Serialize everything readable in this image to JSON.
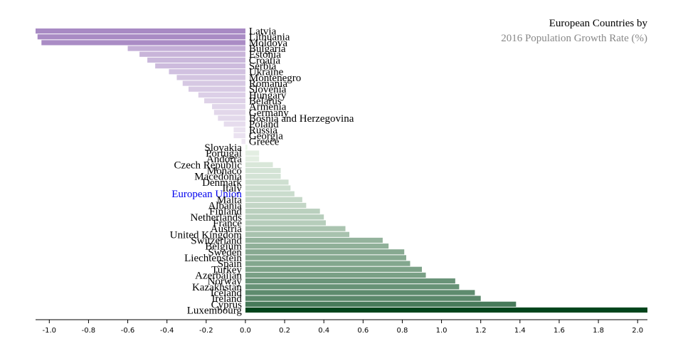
{
  "title_line1": "European Countries by",
  "title_line2": "2016 Population Growth Rate (%)",
  "colors": {
    "negative_light": "#f0eaf4",
    "negative_dark": "#a88ac4",
    "positive_light": "#eef7ec",
    "positive_dark": "#00441b",
    "highlight_label": "#0000ee"
  },
  "chart_data": {
    "type": "bar",
    "orientation": "horizontal",
    "xlim": [
      -1.07,
      2.05
    ],
    "xticks": [
      -1.0,
      -0.8,
      -0.6,
      -0.4,
      -0.2,
      0.0,
      0.2,
      0.4,
      0.6,
      0.8,
      1.0,
      1.2,
      1.4,
      1.6,
      1.8,
      2.0
    ],
    "xtick_labels": [
      "-1.0",
      "-0.8",
      "-0.6",
      "-0.4",
      "-0.2",
      "0.0",
      "0.2",
      "0.4",
      "0.6",
      "0.8",
      "1.0",
      "1.2",
      "1.4",
      "1.6",
      "1.8",
      "2.0"
    ],
    "highlight": "European Union",
    "categories": [
      "Latvia",
      "Lithuania",
      "Moldova",
      "Bulgaria",
      "Estonia",
      "Croatia",
      "Serbia",
      "Ukraine",
      "Montenegro",
      "Romania",
      "Slovenia",
      "Hungary",
      "Belarus",
      "Armenia",
      "Germany",
      "Bosnia and Herzegovina",
      "Poland",
      "Russia",
      "Georgia",
      "Greece",
      "Slovakia",
      "Portugal",
      "Andorra",
      "Czech Republic",
      "Monaco",
      "Macedonia",
      "Denmark",
      "Italy",
      "European Union",
      "Malta",
      "Albania",
      "Finland",
      "Netherlands",
      "France",
      "Austria",
      "United Kingdom",
      "Switzerland",
      "Belgium",
      "Sweden",
      "Liechtenstein",
      "Spain",
      "Turkey",
      "Azerbaijan",
      "Norway",
      "Kazakhstan",
      "Iceland",
      "Ireland",
      "Cyprus",
      "Luxembourg"
    ],
    "values": [
      -1.07,
      -1.06,
      -1.04,
      -0.6,
      -0.54,
      -0.5,
      -0.46,
      -0.39,
      -0.35,
      -0.32,
      -0.29,
      -0.24,
      -0.21,
      -0.17,
      -0.16,
      -0.14,
      -0.11,
      -0.06,
      -0.06,
      -0.02,
      0.01,
      0.07,
      0.07,
      0.14,
      0.18,
      0.18,
      0.22,
      0.23,
      0.25,
      0.29,
      0.31,
      0.38,
      0.4,
      0.41,
      0.51,
      0.53,
      0.7,
      0.73,
      0.81,
      0.82,
      0.84,
      0.9,
      0.92,
      1.07,
      1.09,
      1.17,
      1.2,
      1.38,
      2.05
    ]
  }
}
